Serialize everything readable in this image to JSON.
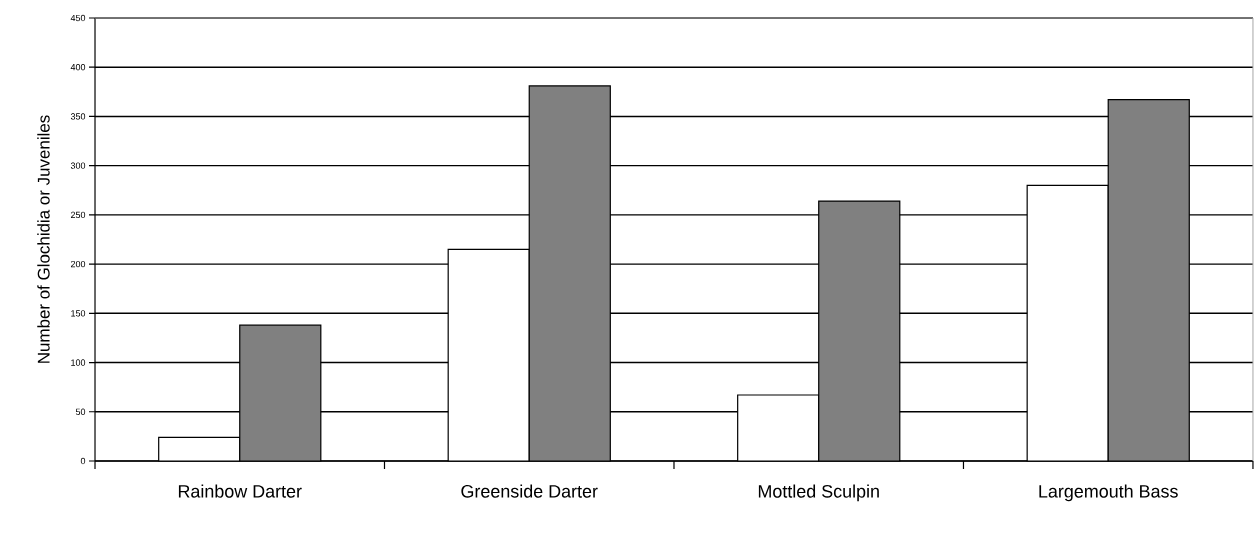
{
  "chart_data": {
    "type": "bar",
    "ylabel": "Number of Glochidia or Juveniles",
    "categories": [
      "Rainbow Darter",
      "Greenside Darter",
      "Mottled Sculpin",
      "Largemouth Bass"
    ],
    "series": [
      {
        "color": "#ffffff",
        "values": [
          24,
          215,
          67,
          280
        ]
      },
      {
        "color": "#808080",
        "values": [
          138,
          381,
          264,
          367
        ]
      }
    ],
    "ylim": [
      0,
      450
    ],
    "yticks": [
      0,
      50,
      100,
      150,
      200,
      250,
      300,
      350,
      400,
      450
    ],
    "grid": "y"
  }
}
